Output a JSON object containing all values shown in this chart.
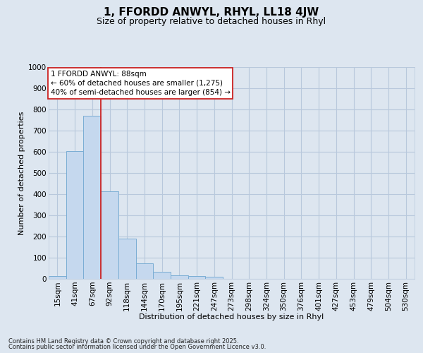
{
  "title": "1, FFORDD ANWYL, RHYL, LL18 4JW",
  "subtitle": "Size of property relative to detached houses in Rhyl",
  "xlabel": "Distribution of detached houses by size in Rhyl",
  "ylabel": "Number of detached properties",
  "bar_color": "#c5d8ee",
  "bar_edge_color": "#7aadd4",
  "fig_bg_color": "#dde6f0",
  "axes_bg_color": "#dde6f0",
  "grid_color": "#b8c8dc",
  "categories": [
    "15sqm",
    "41sqm",
    "67sqm",
    "92sqm",
    "118sqm",
    "144sqm",
    "170sqm",
    "195sqm",
    "221sqm",
    "247sqm",
    "273sqm",
    "298sqm",
    "324sqm",
    "350sqm",
    "376sqm",
    "401sqm",
    "427sqm",
    "453sqm",
    "479sqm",
    "504sqm",
    "530sqm"
  ],
  "values": [
    12,
    605,
    770,
    415,
    190,
    75,
    35,
    17,
    15,
    10,
    0,
    0,
    0,
    0,
    0,
    0,
    0,
    0,
    0,
    0,
    0
  ],
  "ylim": [
    0,
    1000
  ],
  "yticks": [
    0,
    100,
    200,
    300,
    400,
    500,
    600,
    700,
    800,
    900,
    1000
  ],
  "property_line_x": 2.5,
  "annotation_line1": "1 FFORDD ANWYL: 88sqm",
  "annotation_line2": "← 60% of detached houses are smaller (1,275)",
  "annotation_line3": "40% of semi-detached houses are larger (854) →",
  "footer_line1": "Contains HM Land Registry data © Crown copyright and database right 2025.",
  "footer_line2": "Contains public sector information licensed under the Open Government Licence v3.0.",
  "title_fontsize": 11,
  "subtitle_fontsize": 9,
  "label_fontsize": 8,
  "tick_fontsize": 7.5,
  "annotation_fontsize": 7.5,
  "footer_fontsize": 6
}
